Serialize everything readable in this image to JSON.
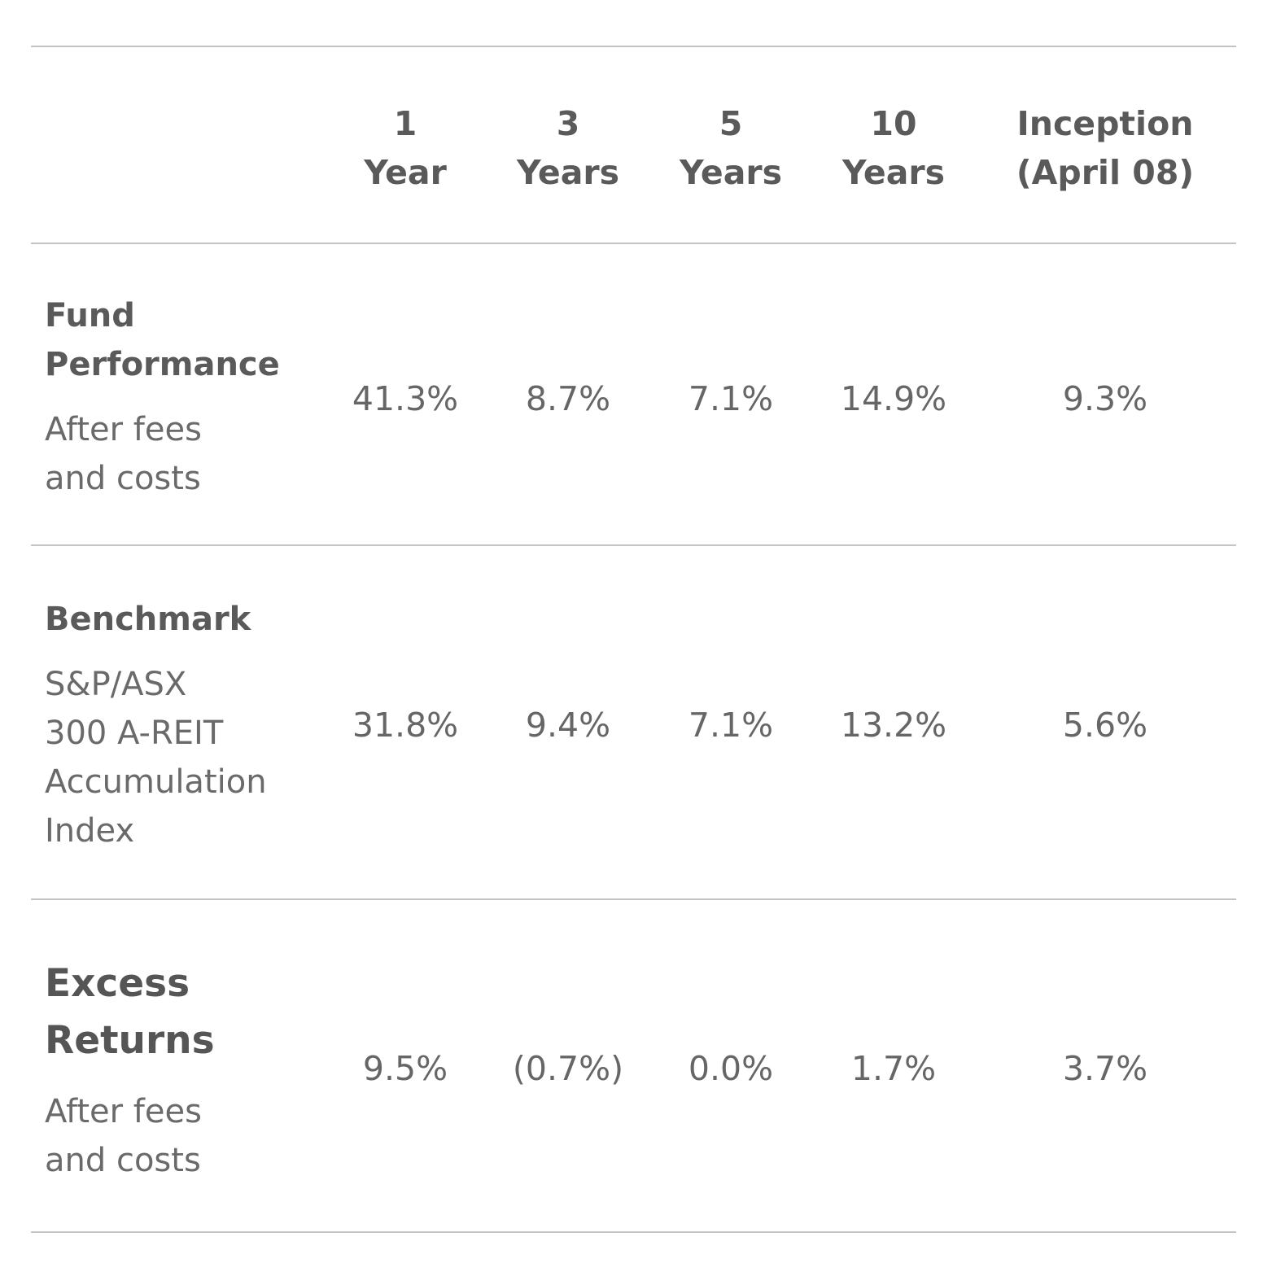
{
  "table": {
    "columns": [
      {
        "line1": "1",
        "line2": "Year"
      },
      {
        "line1": "3",
        "line2": "Years"
      },
      {
        "line1": "5",
        "line2": "Years"
      },
      {
        "line1": "10",
        "line2": "Years"
      },
      {
        "line1": "Inception",
        "line2": "(April 08)"
      }
    ],
    "rows": [
      {
        "title_lines": [
          "Fund",
          "Performance"
        ],
        "sub_lines": [
          "After fees",
          "and costs"
        ],
        "values": [
          "41.3%",
          "8.7%",
          "7.1%",
          "14.9%",
          "9.3%"
        ]
      },
      {
        "title_lines": [
          "Benchmark"
        ],
        "sub_lines": [
          "S&P/ASX",
          "300 A-REIT",
          "Accumulation",
          "Index"
        ],
        "values": [
          "31.8%",
          "9.4%",
          "7.1%",
          "13.2%",
          "5.6%"
        ]
      },
      {
        "title_lines": [
          "Excess",
          "Returns"
        ],
        "sub_lines": [
          "After fees",
          "and costs"
        ],
        "values": [
          "9.5%",
          "(0.7%)",
          "0.0%",
          "1.7%",
          "3.7%"
        ]
      }
    ]
  }
}
